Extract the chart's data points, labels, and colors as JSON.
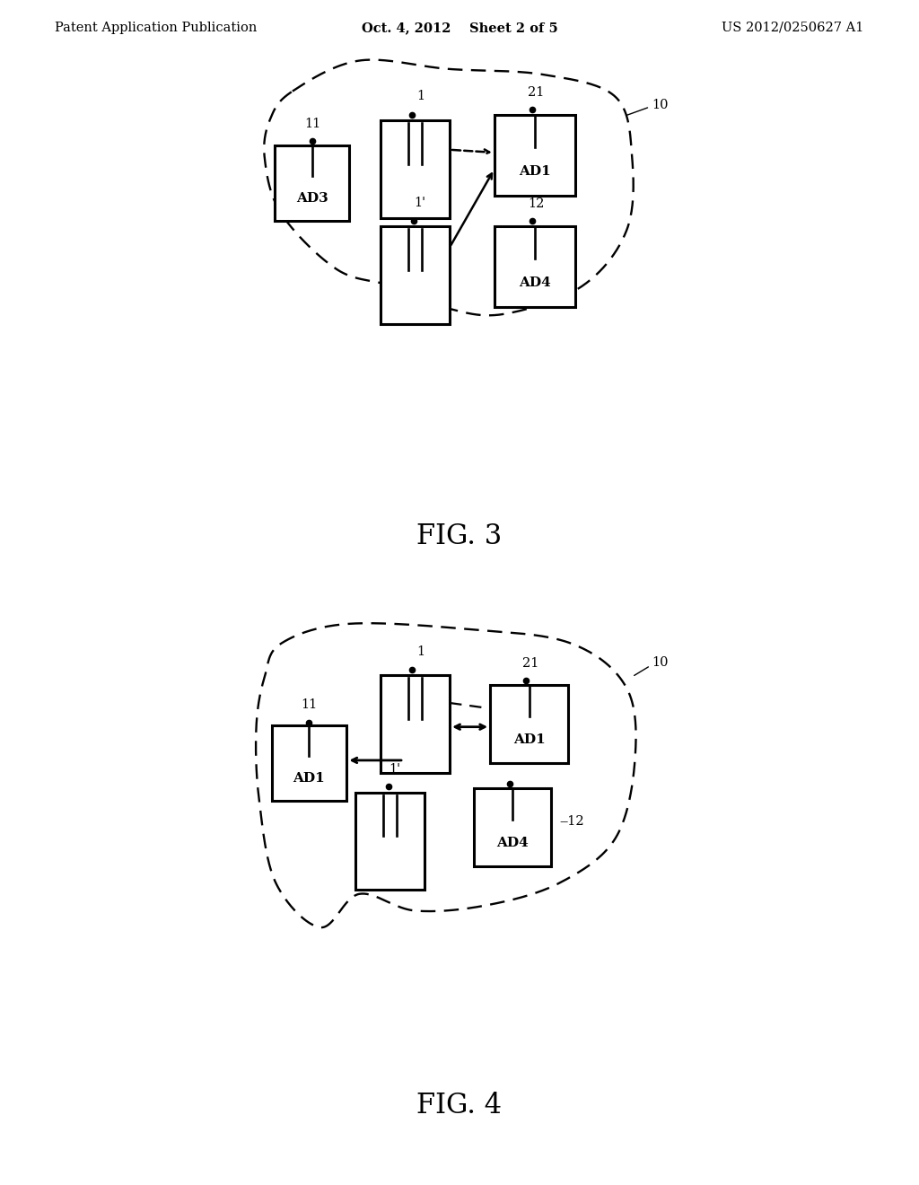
{
  "background_color": "#ffffff",
  "header_left": "Patent Application Publication",
  "header_center": "Oct. 4, 2012    Sheet 2 of 5",
  "header_right": "US 2012/0250627 A1",
  "header_fontsize": 10.5,
  "fig3_caption": "FIG. 3",
  "fig4_caption": "FIG. 4",
  "caption_fontsize": 22
}
